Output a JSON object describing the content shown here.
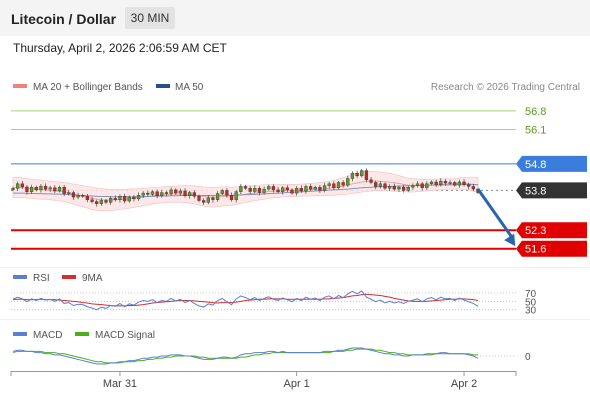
{
  "header": {
    "title": "Litecoin / Dollar",
    "interval_label": "30 MIN",
    "timestamp": "Thursday, April 2, 2026 2:06:59 AM CET"
  },
  "colors": {
    "resistance": "#7cb342",
    "pivot": "#3b7ddd",
    "support": "#e00000",
    "current": "#333333",
    "ma50": "#2a4e8c",
    "bollinger": "#f08080",
    "rsi": "#5b7fd6",
    "rsi_ma": "#d32f2f",
    "macd": "#5b7fd6",
    "macd_signal": "#4caf1a",
    "arrow": "#2a64b0"
  },
  "chart_data": [
    {
      "type": "candlestick",
      "panel": "price",
      "legend": [
        "MA 20 + Bollinger Bands",
        "MA 50"
      ],
      "credit": "Research © 2026 Trading Central",
      "ylim": [
        51.1,
        57.4
      ],
      "x_ticks": [
        {
          "index": 23,
          "label": "Mar 31"
        },
        {
          "index": 61,
          "label": "Apr 1"
        },
        {
          "index": 97,
          "label": "Apr 2"
        }
      ],
      "levels": [
        {
          "value": 56.8,
          "label": "56.8",
          "kind": "resistance"
        },
        {
          "value": 56.1,
          "label": "56.1",
          "kind": "resistance"
        },
        {
          "value": 54.8,
          "label": "54.8",
          "kind": "pivot"
        },
        {
          "value": 53.8,
          "label": "53.8",
          "kind": "current"
        },
        {
          "value": 52.3,
          "label": "52.3",
          "kind": "support"
        },
        {
          "value": 51.6,
          "label": "51.6",
          "kind": "support"
        }
      ],
      "forecast_arrow": {
        "from_index": 100,
        "from_value": 53.85,
        "to_index": 108,
        "to_value": 51.7
      },
      "closes": [
        53.88,
        54.05,
        53.93,
        53.75,
        53.92,
        53.82,
        53.96,
        53.85,
        53.9,
        53.78,
        53.92,
        53.68,
        53.72,
        53.55,
        53.62,
        53.58,
        53.45,
        53.38,
        53.3,
        53.42,
        53.35,
        53.5,
        53.45,
        53.58,
        53.4,
        53.55,
        53.48,
        53.62,
        53.7,
        53.65,
        53.75,
        53.6,
        53.72,
        53.68,
        53.82,
        53.7,
        53.78,
        53.6,
        53.72,
        53.58,
        53.42,
        53.35,
        53.52,
        53.45,
        53.68,
        53.8,
        53.62,
        53.45,
        53.75,
        53.95,
        53.88,
        53.76,
        53.88,
        53.72,
        53.85,
        53.95,
        53.82,
        53.75,
        53.9,
        53.82,
        53.7,
        53.88,
        53.78,
        53.95,
        53.85,
        53.92,
        53.8,
        53.98,
        54.05,
        53.9,
        54.1,
        54.0,
        54.25,
        54.45,
        54.35,
        54.55,
        54.2,
        54.1,
        53.95,
        54.05,
        53.88,
        53.95,
        53.85,
        53.92,
        53.8,
        53.92,
        53.98,
        54.05,
        53.9,
        54.05,
        54.12,
        54.02,
        54.15,
        54.08,
        54.1,
        54.0,
        54.12,
        54.02,
        53.95,
        53.85,
        53.72
      ],
      "ma20": [
        53.9,
        53.92,
        53.9,
        53.88,
        53.86,
        53.84,
        53.83,
        53.82,
        53.8,
        53.78,
        53.77,
        53.74,
        53.7,
        53.66,
        53.62,
        53.58,
        53.54,
        53.5,
        53.47,
        53.45,
        53.44,
        53.44,
        53.45,
        53.46,
        53.47,
        53.49,
        53.51,
        53.53,
        53.55,
        53.57,
        53.6,
        53.62,
        53.63,
        53.64,
        53.65,
        53.66,
        53.66,
        53.66,
        53.65,
        53.63,
        53.6,
        53.57,
        53.55,
        53.54,
        53.55,
        53.57,
        53.58,
        53.58,
        53.6,
        53.63,
        53.66,
        53.68,
        53.7,
        53.72,
        53.74,
        53.76,
        53.77,
        53.78,
        53.79,
        53.8,
        53.8,
        53.8,
        53.81,
        53.82,
        53.83,
        53.84,
        53.85,
        53.86,
        53.88,
        53.9,
        53.93,
        53.96,
        54.0,
        54.05,
        54.08,
        54.12,
        54.14,
        54.15,
        54.15,
        54.14,
        54.13,
        54.11,
        54.09,
        54.06,
        54.03,
        54.0,
        53.99,
        53.99,
        53.99,
        54.0,
        54.01,
        54.02,
        54.03,
        54.04,
        54.05,
        54.05,
        54.06,
        54.06,
        54.05,
        54.03,
        54.0
      ],
      "ma50": [
        53.7,
        53.7,
        53.7,
        53.69,
        53.69,
        53.68,
        53.68,
        53.67,
        53.67,
        53.66,
        53.66,
        53.65,
        53.64,
        53.63,
        53.62,
        53.61,
        53.6,
        53.59,
        53.58,
        53.57,
        53.57,
        53.56,
        53.56,
        53.56,
        53.56,
        53.56,
        53.56,
        53.56,
        53.57,
        53.57,
        53.58,
        53.58,
        53.59,
        53.59,
        53.6,
        53.6,
        53.61,
        53.61,
        53.61,
        53.61,
        53.61,
        53.61,
        53.61,
        53.61,
        53.61,
        53.62,
        53.62,
        53.62,
        53.63,
        53.63,
        53.64,
        53.64,
        53.65,
        53.66,
        53.67,
        53.68,
        53.69,
        53.7,
        53.71,
        53.72,
        53.73,
        53.74,
        53.75,
        53.76,
        53.77,
        53.78,
        53.79,
        53.8,
        53.81,
        53.82,
        53.83,
        53.84,
        53.85,
        53.87,
        53.88,
        53.9,
        53.91,
        53.92,
        53.93,
        53.94,
        53.95,
        53.95,
        53.96,
        53.96,
        53.97,
        53.97,
        53.98,
        53.98,
        53.99,
        53.99,
        54.0,
        54.0,
        54.0,
        54.01,
        54.01,
        54.01,
        54.02,
        54.02,
        54.02,
        54.02,
        54.02
      ],
      "bb_width": [
        0.38,
        0.38,
        0.37,
        0.37,
        0.36,
        0.36,
        0.36,
        0.35,
        0.35,
        0.35,
        0.35,
        0.36,
        0.37,
        0.38,
        0.39,
        0.4,
        0.41,
        0.42,
        0.42,
        0.42,
        0.41,
        0.4,
        0.39,
        0.38,
        0.37,
        0.36,
        0.35,
        0.34,
        0.33,
        0.32,
        0.31,
        0.3,
        0.3,
        0.3,
        0.3,
        0.3,
        0.31,
        0.32,
        0.33,
        0.34,
        0.35,
        0.36,
        0.37,
        0.37,
        0.37,
        0.36,
        0.35,
        0.34,
        0.33,
        0.32,
        0.31,
        0.3,
        0.29,
        0.28,
        0.27,
        0.26,
        0.25,
        0.24,
        0.24,
        0.23,
        0.23,
        0.23,
        0.23,
        0.23,
        0.24,
        0.24,
        0.25,
        0.26,
        0.27,
        0.28,
        0.3,
        0.32,
        0.34,
        0.36,
        0.37,
        0.38,
        0.38,
        0.37,
        0.36,
        0.35,
        0.34,
        0.33,
        0.32,
        0.3,
        0.28,
        0.26,
        0.25,
        0.24,
        0.23,
        0.22,
        0.22,
        0.21,
        0.21,
        0.2,
        0.2,
        0.2,
        0.21,
        0.22,
        0.23,
        0.25,
        0.28
      ]
    },
    {
      "type": "line",
      "panel": "rsi",
      "legend": [
        "RSI",
        "9MA"
      ],
      "levels": [
        70,
        50,
        30
      ],
      "level_labels": [
        "70",
        "50",
        "30"
      ],
      "ylim": [
        10,
        82
      ],
      "series": [
        {
          "name": "RSI",
          "values": [
            55,
            60,
            56,
            49,
            56,
            52,
            57,
            53,
            55,
            50,
            56,
            45,
            47,
            40,
            43,
            42,
            37,
            34,
            30,
            36,
            33,
            40,
            38,
            45,
            37,
            44,
            41,
            48,
            52,
            50,
            54,
            47,
            52,
            50,
            57,
            51,
            55,
            47,
            52,
            45,
            39,
            36,
            44,
            41,
            52,
            57,
            49,
            42,
            56,
            63,
            59,
            54,
            59,
            52,
            57,
            61,
            55,
            52,
            58,
            54,
            49,
            57,
            52,
            60,
            55,
            58,
            52,
            60,
            63,
            56,
            64,
            59,
            68,
            74,
            68,
            75,
            60,
            55,
            49,
            53,
            46,
            50,
            46,
            49,
            45,
            50,
            53,
            56,
            49,
            56,
            59,
            54,
            60,
            56,
            57,
            52,
            58,
            53,
            49,
            45,
            38
          ]
        },
        {
          "name": "9MA",
          "values": [
            54,
            55,
            55,
            54,
            54,
            54,
            55,
            54,
            54,
            54,
            53,
            52,
            51,
            50,
            49,
            47,
            46,
            44,
            43,
            42,
            41,
            40,
            39,
            39,
            39,
            40,
            40,
            41,
            42,
            44,
            46,
            47,
            48,
            49,
            50,
            51,
            52,
            52,
            52,
            51,
            50,
            49,
            48,
            47,
            46,
            47,
            47,
            47,
            48,
            50,
            52,
            53,
            54,
            55,
            55,
            56,
            56,
            56,
            56,
            55,
            55,
            55,
            55,
            55,
            55,
            55,
            55,
            56,
            56,
            57,
            58,
            59,
            61,
            63,
            64,
            66,
            67,
            66,
            65,
            64,
            62,
            60,
            57,
            55,
            53,
            51,
            50,
            50,
            50,
            50,
            51,
            52,
            53,
            54,
            55,
            55,
            56,
            56,
            55,
            54,
            52
          ]
        }
      ]
    },
    {
      "type": "line",
      "panel": "macd",
      "legend": [
        "MACD",
        "MACD Signal"
      ],
      "levels": [
        0
      ],
      "level_labels": [
        "0"
      ],
      "ylim": [
        -0.14,
        0.14
      ],
      "series": [
        {
          "name": "MACD",
          "values": [
            0.04,
            0.05,
            0.05,
            0.04,
            0.04,
            0.03,
            0.03,
            0.02,
            0.02,
            0.01,
            0.01,
            0.0,
            -0.01,
            -0.02,
            -0.03,
            -0.04,
            -0.05,
            -0.06,
            -0.07,
            -0.07,
            -0.07,
            -0.06,
            -0.06,
            -0.05,
            -0.05,
            -0.04,
            -0.04,
            -0.03,
            -0.02,
            -0.02,
            -0.01,
            -0.01,
            0.0,
            0.0,
            0.01,
            0.01,
            0.01,
            0.0,
            0.0,
            -0.01,
            -0.02,
            -0.03,
            -0.03,
            -0.03,
            -0.02,
            -0.01,
            -0.01,
            -0.02,
            -0.01,
            0.01,
            0.02,
            0.02,
            0.03,
            0.03,
            0.03,
            0.04,
            0.04,
            0.03,
            0.04,
            0.03,
            0.03,
            0.03,
            0.03,
            0.03,
            0.03,
            0.03,
            0.03,
            0.04,
            0.04,
            0.04,
            0.05,
            0.05,
            0.06,
            0.07,
            0.07,
            0.07,
            0.06,
            0.05,
            0.04,
            0.03,
            0.02,
            0.02,
            0.01,
            0.01,
            0.0,
            0.0,
            0.01,
            0.01,
            0.01,
            0.02,
            0.02,
            0.02,
            0.03,
            0.03,
            0.02,
            0.02,
            0.02,
            0.02,
            0.01,
            0.0,
            -0.02
          ]
        },
        {
          "name": "MACD Signal",
          "values": [
            0.03,
            0.04,
            0.04,
            0.04,
            0.04,
            0.04,
            0.04,
            0.03,
            0.03,
            0.03,
            0.02,
            0.02,
            0.01,
            0.0,
            -0.01,
            -0.02,
            -0.03,
            -0.04,
            -0.05,
            -0.05,
            -0.06,
            -0.06,
            -0.06,
            -0.06,
            -0.05,
            -0.05,
            -0.05,
            -0.04,
            -0.04,
            -0.03,
            -0.03,
            -0.02,
            -0.02,
            -0.01,
            -0.01,
            0.0,
            0.0,
            0.0,
            0.0,
            0.0,
            -0.01,
            -0.01,
            -0.02,
            -0.02,
            -0.02,
            -0.02,
            -0.02,
            -0.02,
            -0.02,
            -0.01,
            -0.01,
            0.0,
            0.01,
            0.01,
            0.02,
            0.02,
            0.03,
            0.03,
            0.03,
            0.03,
            0.03,
            0.03,
            0.03,
            0.03,
            0.03,
            0.03,
            0.03,
            0.03,
            0.03,
            0.04,
            0.04,
            0.04,
            0.05,
            0.05,
            0.06,
            0.06,
            0.06,
            0.06,
            0.05,
            0.05,
            0.04,
            0.03,
            0.03,
            0.02,
            0.02,
            0.01,
            0.01,
            0.01,
            0.01,
            0.01,
            0.01,
            0.02,
            0.02,
            0.02,
            0.02,
            0.02,
            0.02,
            0.02,
            0.02,
            0.01,
            0.01
          ]
        }
      ]
    }
  ]
}
